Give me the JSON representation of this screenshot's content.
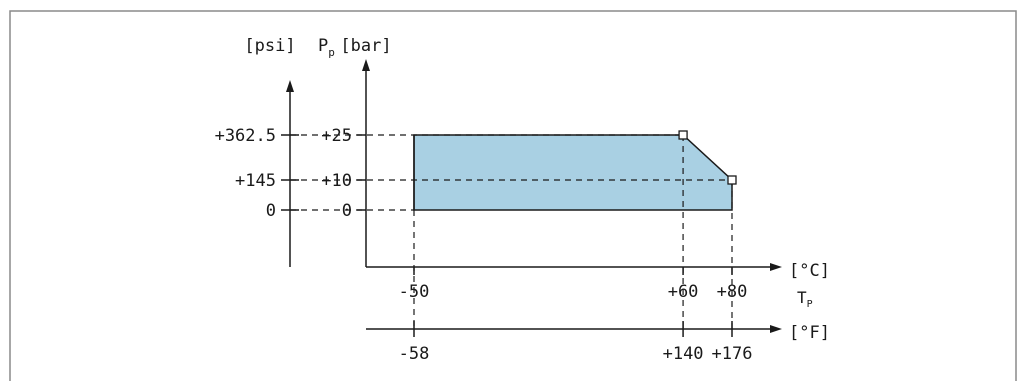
{
  "chart_data": {
    "type": "area",
    "title": "",
    "colors": {
      "fill": "#a9d0e3",
      "line": "#1a1a1a",
      "frame": "#8a8a8a"
    },
    "y_axis_psi": {
      "unit_label": "[psi]",
      "ticks": [
        "+362.5",
        "+145",
        "0"
      ],
      "tick_values": [
        362.5,
        145,
        0
      ]
    },
    "y_axis_bar": {
      "symbol": "P",
      "symbol_subscript": "p",
      "unit_label": "[bar]",
      "ticks": [
        "+25",
        "+10",
        "0"
      ],
      "tick_values": [
        25,
        10,
        0
      ],
      "ylim": [
        0,
        25
      ]
    },
    "x_axis_celsius": {
      "unit_label": "[°C]",
      "symbol": "T",
      "symbol_subscript": "P",
      "ticks": [
        "-50",
        "+60",
        "+80"
      ],
      "tick_values": [
        -50,
        60,
        80
      ]
    },
    "x_axis_fahrenheit": {
      "unit_label": "[°F]",
      "ticks": [
        "-58",
        "+140",
        "+176"
      ],
      "tick_values": [
        -58,
        140,
        176
      ]
    },
    "polygon": [
      {
        "t": -50,
        "p": 0
      },
      {
        "t": -50,
        "p": 25
      },
      {
        "t": 60,
        "p": 25
      },
      {
        "t": 80,
        "p": 10
      },
      {
        "t": 80,
        "p": 0
      }
    ],
    "markers": [
      {
        "t": 60,
        "p": 25
      },
      {
        "t": 80,
        "p": 10
      }
    ]
  }
}
